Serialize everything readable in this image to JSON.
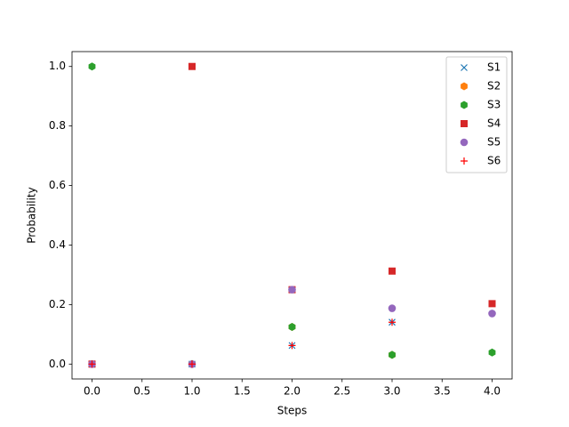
{
  "chart_data": {
    "type": "scatter",
    "x_label": "Steps",
    "y_label": "Probability",
    "x": [
      0,
      1,
      2,
      3,
      4
    ],
    "series": [
      {
        "name": "S1",
        "color": "#1f77b4",
        "marker": "x",
        "values": [
          0,
          0,
          0.0625,
          0.140625,
          null
        ]
      },
      {
        "name": "S2",
        "color": "#ff7f0e",
        "marker": "hexagon",
        "values": [
          0,
          0,
          0.125,
          0.03125,
          null
        ]
      },
      {
        "name": "S3",
        "color": "#2ca02c",
        "marker": "hexagon",
        "values": [
          1.0,
          0,
          0.125,
          0.03125,
          0.039
        ]
      },
      {
        "name": "S4",
        "color": "#d62728",
        "marker": "square",
        "values": [
          0,
          1.0,
          0.25,
          0.3125,
          0.203
        ]
      },
      {
        "name": "S5",
        "color": "#9467bd",
        "marker": "circle",
        "values": [
          0,
          0,
          0.25,
          0.1875,
          0.17
        ]
      },
      {
        "name": "S6",
        "color": "#ff0000",
        "marker": "plus",
        "values": [
          0,
          0,
          0.0625,
          0.140625,
          null
        ]
      }
    ],
    "xlim": [
      -0.2,
      4.2
    ],
    "ylim": [
      -0.05,
      1.05
    ],
    "xticks": [
      {
        "value": 0,
        "label": "0.0"
      },
      {
        "value": 0.5,
        "label": "0.5"
      },
      {
        "value": 1,
        "label": "1.0"
      },
      {
        "value": 1.5,
        "label": "1.5"
      },
      {
        "value": 2,
        "label": "2.0"
      },
      {
        "value": 2.5,
        "label": "2.5"
      },
      {
        "value": 3,
        "label": "3.0"
      },
      {
        "value": 3.5,
        "label": "3.5"
      },
      {
        "value": 4,
        "label": "4.0"
      }
    ],
    "yticks": [
      {
        "value": 0,
        "label": "0.0"
      },
      {
        "value": 0.2,
        "label": "0.2"
      },
      {
        "value": 0.4,
        "label": "0.4"
      },
      {
        "value": 0.6,
        "label": "0.6"
      },
      {
        "value": 0.8,
        "label": "0.8"
      },
      {
        "value": 1.0,
        "label": "1.0"
      }
    ],
    "legend": "upper right"
  }
}
